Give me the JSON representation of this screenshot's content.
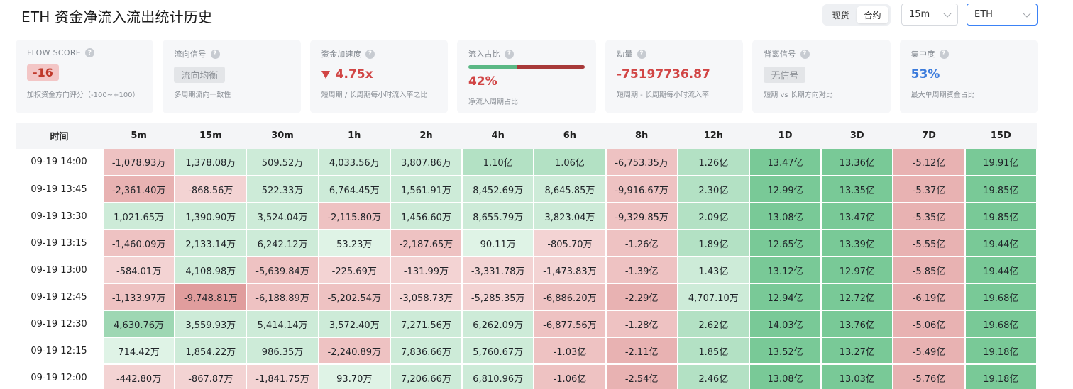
{
  "header": {
    "title": "ETH 资金净流入流出统计历史",
    "market_tabs": [
      "现货",
      "合约"
    ],
    "active_market": 1,
    "interval": "15m",
    "coin": "ETH"
  },
  "cards": {
    "flow_score": {
      "label": "FLOW SCORE",
      "value": "-16",
      "desc": "加权资金方向评分（-100~+100）"
    },
    "flow_signal": {
      "label": "流向信号",
      "value": "流向均衡",
      "desc": "多周期流向一致性"
    },
    "acceleration": {
      "label": "资金加速度",
      "value": "4.75x",
      "desc": "短周期 / 长周期每小时流入率之比"
    },
    "inflow_ratio": {
      "label": "流入占比",
      "value": "42%",
      "ratio": 0.42,
      "desc": "净流入周期占比"
    },
    "momentum": {
      "label": "动量",
      "value": "-75197736.87",
      "desc": "短周期 - 长周期每小时流入率"
    },
    "divergence": {
      "label": "背离信号",
      "value": "无信号",
      "desc": "短期 vs 长期方向对比"
    },
    "concentration": {
      "label": "集中度",
      "value": "53%",
      "desc": "最大单周期资金占比"
    }
  },
  "colors": {
    "pos_scale": [
      "#dff3e6",
      "#cdebd8",
      "#b3e1c4",
      "#9ed7b3",
      "#79c997"
    ],
    "neg_scale": [
      "#f8e4e4",
      "#f3d3d3",
      "#eec2c2",
      "#e8b2b2",
      "#e09d9d"
    ]
  },
  "table": {
    "headers": [
      "时间",
      "5m",
      "15m",
      "30m",
      "1h",
      "2h",
      "4h",
      "6h",
      "8h",
      "12h",
      "1D",
      "3D",
      "7D",
      "15D"
    ],
    "rows": [
      {
        "time": "09-19 14:00",
        "cells": [
          "-1,078.93万",
          "1,378.08万",
          "509.52万",
          "4,033.56万",
          "3,807.86万",
          "1.10亿",
          "1.06亿",
          "-6,753.35万",
          "1.26亿",
          "13.47亿",
          "13.36亿",
          "-5.12亿",
          "19.91亿"
        ],
        "levels": [
          -2,
          1,
          1,
          1,
          1,
          2,
          2,
          -2,
          2,
          4,
          4,
          -3,
          4
        ]
      },
      {
        "time": "09-19 13:45",
        "cells": [
          "-2,361.40万",
          "-868.56万",
          "522.33万",
          "6,764.45万",
          "1,561.91万",
          "8,452.69万",
          "8,645.85万",
          "-9,916.67万",
          "2.30亿",
          "12.99亿",
          "13.35亿",
          "-5.37亿",
          "19.85亿"
        ],
        "levels": [
          -3,
          -1,
          1,
          1,
          1,
          1,
          1,
          -2,
          2,
          4,
          4,
          -3,
          4
        ]
      },
      {
        "time": "09-19 13:30",
        "cells": [
          "1,021.65万",
          "1,390.90万",
          "3,524.04万",
          "-2,115.80万",
          "1,456.60万",
          "8,655.79万",
          "3,823.04万",
          "-9,329.85万",
          "2.09亿",
          "13.08亿",
          "13.47亿",
          "-5.35亿",
          "19.85亿"
        ],
        "levels": [
          1,
          1,
          1,
          -2,
          1,
          1,
          1,
          -2,
          2,
          4,
          4,
          -3,
          4
        ]
      },
      {
        "time": "09-19 13:15",
        "cells": [
          "-1,460.09万",
          "2,133.14万",
          "6,242.12万",
          "53.23万",
          "-2,187.65万",
          "90.11万",
          "-805.70万",
          "-1.26亿",
          "1.89亿",
          "12.65亿",
          "13.39亿",
          "-5.55亿",
          "19.44亿"
        ],
        "levels": [
          -2,
          1,
          1,
          0,
          -2,
          0,
          -1,
          -2,
          2,
          4,
          4,
          -3,
          4
        ]
      },
      {
        "time": "09-19 13:00",
        "cells": [
          "-584.01万",
          "4,108.98万",
          "-5,639.84万",
          "-225.69万",
          "-131.99万",
          "-3,331.78万",
          "-1,473.83万",
          "-1.39亿",
          "1.43亿",
          "13.12亿",
          "12.97亿",
          "-5.85亿",
          "19.44亿"
        ],
        "levels": [
          -1,
          1,
          -2,
          -1,
          -1,
          -1,
          -1,
          -2,
          1,
          4,
          4,
          -3,
          4
        ]
      },
      {
        "time": "09-19 12:45",
        "cells": [
          "-1,133.97万",
          "-9,748.81万",
          "-6,188.89万",
          "-5,202.54万",
          "-3,058.73万",
          "-5,285.35万",
          "-6,886.20万",
          "-2.29亿",
          "4,707.10万",
          "12.94亿",
          "12.72亿",
          "-6.19亿",
          "19.68亿"
        ],
        "levels": [
          -2,
          -4,
          -2,
          -2,
          -1,
          -1,
          -2,
          -3,
          1,
          4,
          4,
          -3,
          4
        ]
      },
      {
        "time": "09-19 12:30",
        "cells": [
          "4,630.76万",
          "3,559.93万",
          "5,414.14万",
          "3,572.40万",
          "7,271.56万",
          "6,262.09万",
          "-6,877.56万",
          "-1.28亿",
          "2.62亿",
          "14.03亿",
          "13.76亿",
          "-5.06亿",
          "19.68亿"
        ],
        "levels": [
          3,
          1,
          1,
          1,
          1,
          1,
          -2,
          -2,
          2,
          4,
          4,
          -3,
          4
        ]
      },
      {
        "time": "09-19 12:15",
        "cells": [
          "714.42万",
          "1,854.22万",
          "986.35万",
          "-2,240.89万",
          "7,836.66万",
          "5,760.67万",
          "-1.03亿",
          "-2.11亿",
          "1.85亿",
          "13.52亿",
          "13.27亿",
          "-5.49亿",
          "19.18亿"
        ],
        "levels": [
          0,
          1,
          1,
          -2,
          1,
          1,
          -2,
          -3,
          2,
          4,
          4,
          -3,
          4
        ]
      },
      {
        "time": "09-19 12:00",
        "cells": [
          "-442.80万",
          "-867.87万",
          "-1,841.75万",
          "93.70万",
          "7,206.66万",
          "6,810.96万",
          "-1.06亿",
          "-2.54亿",
          "2.46亿",
          "13.08亿",
          "13.03亿",
          "-5.76亿",
          "19.18亿"
        ],
        "levels": [
          -1,
          -1,
          -1,
          0,
          1,
          1,
          -2,
          -3,
          2,
          4,
          4,
          -3,
          4
        ]
      }
    ]
  }
}
